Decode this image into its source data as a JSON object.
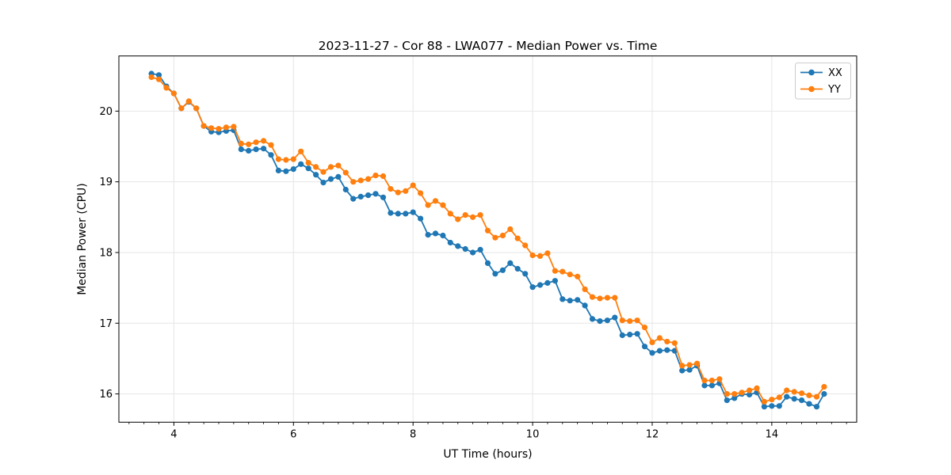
{
  "chart_data": {
    "type": "line",
    "title": "2023-11-27 - Cor 88 - LWA077 - Median Power vs. Time",
    "xlabel": "UT Time (hours)",
    "ylabel": "Median Power (CPU)",
    "xlim": [
      3.08,
      15.42
    ],
    "ylim": [
      15.6,
      20.78
    ],
    "x_major_ticks": [
      4,
      6,
      8,
      10,
      12,
      14
    ],
    "x_minor_tick_step": 0.25,
    "y_major_ticks": [
      16,
      17,
      18,
      19,
      20
    ],
    "grid": true,
    "grid_color": "#e6e6e6",
    "background_color": "#ffffff",
    "legend_position": "upper right",
    "legend_labels": [
      "XX",
      "YY"
    ],
    "x": [
      3.625,
      3.75,
      3.875,
      4.0,
      4.125,
      4.25,
      4.375,
      4.5,
      4.625,
      4.75,
      4.875,
      5.0,
      5.125,
      5.25,
      5.375,
      5.5,
      5.625,
      5.75,
      5.875,
      6.0,
      6.125,
      6.25,
      6.375,
      6.5,
      6.625,
      6.75,
      6.875,
      7.0,
      7.125,
      7.25,
      7.375,
      7.5,
      7.625,
      7.75,
      7.875,
      8.0,
      8.125,
      8.25,
      8.375,
      8.5,
      8.625,
      8.75,
      8.875,
      9.0,
      9.125,
      9.25,
      9.375,
      9.5,
      9.625,
      9.75,
      9.875,
      10.0,
      10.125,
      10.25,
      10.375,
      10.5,
      10.625,
      10.75,
      10.875,
      11.0,
      11.125,
      11.25,
      11.375,
      11.5,
      11.625,
      11.75,
      11.875,
      12.0,
      12.125,
      12.25,
      12.375,
      12.5,
      12.625,
      12.75,
      12.875,
      13.0,
      13.125,
      13.25,
      13.375,
      13.5,
      13.625,
      13.75,
      13.875,
      14.0,
      14.125,
      14.25,
      14.375,
      14.5,
      14.625,
      14.75,
      14.875
    ],
    "series": [
      {
        "name": "XX",
        "color": "#1f77b4",
        "marker": "circle",
        "values": [
          20.53,
          20.51,
          20.35,
          20.25,
          20.04,
          20.13,
          20.04,
          19.79,
          19.71,
          19.7,
          19.72,
          19.73,
          19.46,
          19.44,
          19.46,
          19.47,
          19.38,
          19.16,
          19.15,
          19.18,
          19.25,
          19.19,
          19.1,
          18.99,
          19.04,
          19.07,
          18.89,
          18.76,
          18.79,
          18.81,
          18.83,
          18.78,
          18.56,
          18.55,
          18.55,
          18.57,
          18.48,
          18.25,
          18.27,
          18.24,
          18.14,
          18.09,
          18.05,
          18.0,
          18.04,
          17.85,
          17.7,
          17.75,
          17.85,
          17.77,
          17.7,
          17.51,
          17.54,
          17.57,
          17.6,
          17.34,
          17.32,
          17.33,
          17.25,
          17.06,
          17.03,
          17.04,
          17.08,
          16.83,
          16.84,
          16.85,
          16.67,
          16.58,
          16.61,
          16.62,
          16.61,
          16.33,
          16.34,
          16.4,
          16.12,
          16.12,
          16.15,
          15.91,
          15.94,
          16.0,
          15.99,
          16.02,
          15.82,
          15.83,
          15.83,
          15.96,
          15.93,
          15.91,
          15.86,
          15.82,
          16.0
        ]
      },
      {
        "name": "YY",
        "color": "#ff7f0e",
        "marker": "circle",
        "values": [
          20.48,
          20.45,
          20.33,
          20.25,
          20.04,
          20.14,
          20.04,
          19.79,
          19.76,
          19.75,
          19.77,
          19.78,
          19.54,
          19.53,
          19.56,
          19.58,
          19.52,
          19.32,
          19.31,
          19.32,
          19.43,
          19.27,
          19.21,
          19.14,
          19.21,
          19.23,
          19.13,
          19.0,
          19.02,
          19.04,
          19.09,
          19.08,
          18.9,
          18.85,
          18.87,
          18.95,
          18.84,
          18.67,
          18.73,
          18.67,
          18.55,
          18.47,
          18.53,
          18.5,
          18.53,
          18.31,
          18.21,
          18.24,
          18.33,
          18.2,
          18.1,
          17.96,
          17.95,
          17.99,
          17.74,
          17.73,
          17.69,
          17.66,
          17.48,
          17.37,
          17.35,
          17.36,
          17.36,
          17.04,
          17.03,
          17.04,
          16.94,
          16.73,
          16.79,
          16.74,
          16.72,
          16.4,
          16.41,
          16.43,
          16.19,
          16.19,
          16.21,
          16.0,
          16.0,
          16.02,
          16.05,
          16.08,
          15.89,
          15.92,
          15.95,
          16.05,
          16.03,
          16.01,
          15.98,
          15.96,
          16.1
        ]
      }
    ]
  }
}
